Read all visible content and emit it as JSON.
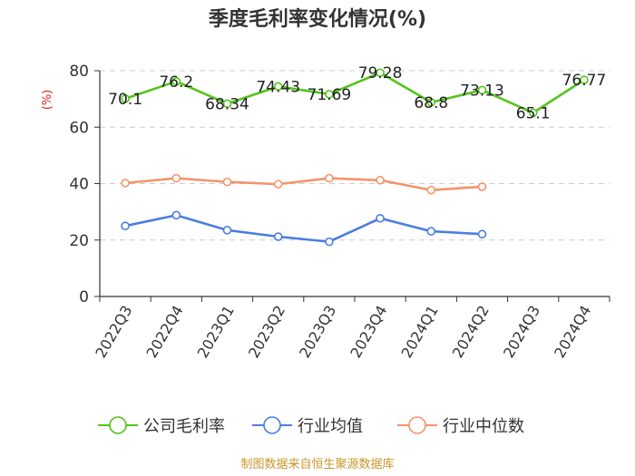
{
  "chart_data": {
    "type": "line",
    "title": "季度毛利率变化情况(%)",
    "ylabel": "(%)",
    "ylim": [
      0,
      80
    ],
    "yticks": [
      0,
      20,
      40,
      60,
      80
    ],
    "grid": true,
    "legend_position": "bottom",
    "categories": [
      "2022Q3",
      "2022Q4",
      "2023Q1",
      "2023Q2",
      "2023Q3",
      "2023Q4",
      "2024Q1",
      "2024Q2",
      "2024Q3",
      "2024Q4"
    ],
    "series": [
      {
        "name": "公司毛利率",
        "color": "#52c41a",
        "values": [
          70.1,
          76.2,
          68.34,
          74.43,
          71.69,
          79.28,
          68.8,
          73.13,
          65.1,
          76.77
        ],
        "data_labels": [
          "70.1",
          "76.2",
          "68.34",
          "74.43",
          "71.69",
          "79.28",
          "68.8",
          "73.13",
          "65.1",
          "76.77"
        ]
      },
      {
        "name": "行业均值",
        "color": "#4a7ee0",
        "values": [
          25,
          28.8,
          23.5,
          21.2,
          19.4,
          27.7,
          23.1,
          22.1,
          null,
          null
        ]
      },
      {
        "name": "行业中位数",
        "color": "#f5936b",
        "values": [
          40.2,
          41.9,
          40.6,
          39.8,
          41.9,
          41.2,
          37.7,
          38.9,
          null,
          null
        ]
      }
    ],
    "source": "制图数据来自恒生聚源数据库"
  }
}
